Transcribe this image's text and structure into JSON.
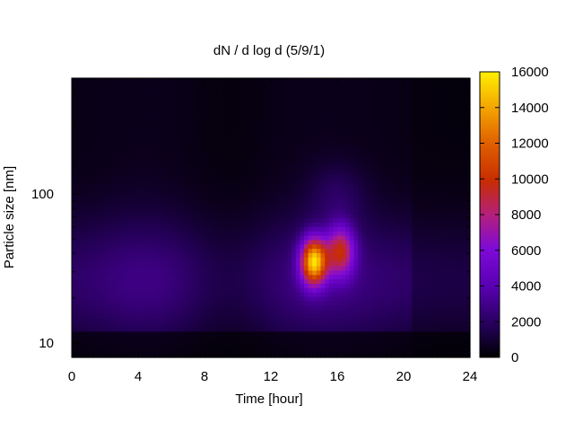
{
  "chart_data": {
    "type": "heatmap",
    "title": "dN / d log d (5/9/1)",
    "xlabel": "Time [hour]",
    "ylabel": "Particle size [nm]",
    "xlim": [
      0,
      24
    ],
    "ylim": [
      8,
      600
    ],
    "ylog": true,
    "x_ticks": [
      0,
      4,
      8,
      12,
      16,
      20,
      24
    ],
    "y_ticks": [
      10,
      100
    ],
    "colorbar": {
      "range": [
        0,
        16000
      ],
      "ticks": [
        0,
        2000,
        4000,
        6000,
        8000,
        10000,
        12000,
        14000,
        16000
      ],
      "palette": "gnuplot (black-purple-red-orange-yellow)"
    },
    "features": [
      {
        "description": "nucleation/growth burst",
        "time_range": [
          13.8,
          16.9
        ],
        "size_range": [
          22,
          85
        ],
        "peak_time": 14.5,
        "peak_size": 35,
        "peak_value": 14000
      },
      {
        "description": "mid-size band",
        "time_range": [
          0,
          24
        ],
        "size_range": [
          15,
          120
        ],
        "typical_value": 3000
      },
      {
        "description": "low background",
        "size_above": 200,
        "typical_value": 500
      }
    ]
  }
}
